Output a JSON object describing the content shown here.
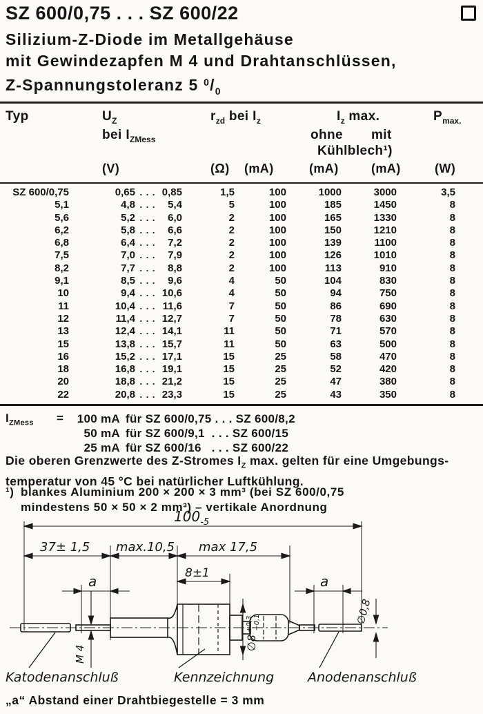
{
  "page": {
    "title": "SZ 600/0,75 . . . SZ 600/22",
    "subtitle_line1": "Silizium-Z-Diode im Metallgehäuse",
    "subtitle_line2": "mit Gewindezapfen M 4 und Drahtanschlüssen,",
    "subtitle_line3_pre": "Z-Spannungstoleranz 5 ",
    "percent_top": "0",
    "percent_slash": "/",
    "percent_bottom": "0"
  },
  "table": {
    "col_typ": "Typ",
    "col_uz_main": "U",
    "col_uz_sub": "Z",
    "col_uz2_main": "bei I",
    "col_uz2_sub": "ZMess",
    "col_rzd_main": "r",
    "col_rzd_sub": "zd",
    "col_rzd_mid": " bei I",
    "col_rzd_sub2": "z",
    "col_iz_main": "I",
    "col_iz_sub": "z",
    "col_iz_post": " max.",
    "col_ohne": "ohne",
    "col_mit": "mit",
    "col_kuehlblech": "Kühlblech¹)",
    "col_p_main": "P",
    "col_p_sub": "max.",
    "unit_v": "(V)",
    "unit_ohm": "(Ω)",
    "unit_ma_iz": "(mA)",
    "unit_ma_ohne": "(mA)",
    "unit_ma_mit": "(mA)",
    "unit_w": "(W)",
    "dots": ". . .",
    "rows": [
      {
        "typ": "SZ 600/0,75",
        "uz_min": "0,65",
        "uz_max": "0,85",
        "rzd": "1,5",
        "iz": "100",
        "ohne": "1000",
        "mit": "3000",
        "pmax": "3,5"
      },
      {
        "typ": "5,1",
        "uz_min": "4,8",
        "uz_max": "5,4",
        "rzd": "5",
        "iz": "100",
        "ohne": "185",
        "mit": "1450",
        "pmax": "8"
      },
      {
        "typ": "5,6",
        "uz_min": "5,2",
        "uz_max": "6,0",
        "rzd": "2",
        "iz": "100",
        "ohne": "165",
        "mit": "1330",
        "pmax": "8"
      },
      {
        "typ": "6,2",
        "uz_min": "5,8",
        "uz_max": "6,6",
        "rzd": "2",
        "iz": "100",
        "ohne": "150",
        "mit": "1210",
        "pmax": "8"
      },
      {
        "typ": "6,8",
        "uz_min": "6,4",
        "uz_max": "7,2",
        "rzd": "2",
        "iz": "100",
        "ohne": "139",
        "mit": "1100",
        "pmax": "8"
      },
      {
        "typ": "7,5",
        "uz_min": "7,0",
        "uz_max": "7,9",
        "rzd": "2",
        "iz": "100",
        "ohne": "126",
        "mit": "1010",
        "pmax": "8"
      },
      {
        "typ": "8,2",
        "uz_min": "7,7",
        "uz_max": "8,8",
        "rzd": "2",
        "iz": "100",
        "ohne": "113",
        "mit": "910",
        "pmax": "8"
      },
      {
        "typ": "9,1",
        "uz_min": "8,5",
        "uz_max": "9,6",
        "rzd": "4",
        "iz": "50",
        "ohne": "104",
        "mit": "830",
        "pmax": "8"
      },
      {
        "typ": "10",
        "uz_min": "9,4",
        "uz_max": "10,6",
        "rzd": "4",
        "iz": "50",
        "ohne": "94",
        "mit": "750",
        "pmax": "8"
      },
      {
        "typ": "11",
        "uz_min": "10,4",
        "uz_max": "11,6",
        "rzd": "7",
        "iz": "50",
        "ohne": "86",
        "mit": "690",
        "pmax": "8"
      },
      {
        "typ": "12",
        "uz_min": "11,4",
        "uz_max": "12,7",
        "rzd": "7",
        "iz": "50",
        "ohne": "78",
        "mit": "630",
        "pmax": "8"
      },
      {
        "typ": "13",
        "uz_min": "12,4",
        "uz_max": "14,1",
        "rzd": "11",
        "iz": "50",
        "ohne": "71",
        "mit": "570",
        "pmax": "8"
      },
      {
        "typ": "15",
        "uz_min": "13,8",
        "uz_max": "15,7",
        "rzd": "11",
        "iz": "50",
        "ohne": "63",
        "mit": "500",
        "pmax": "8"
      },
      {
        "typ": "16",
        "uz_min": "15,2",
        "uz_max": "17,1",
        "rzd": "15",
        "iz": "25",
        "ohne": "58",
        "mit": "470",
        "pmax": "8"
      },
      {
        "typ": "18",
        "uz_min": "16,8",
        "uz_max": "19,1",
        "rzd": "15",
        "iz": "25",
        "ohne": "52",
        "mit": "420",
        "pmax": "8"
      },
      {
        "typ": "20",
        "uz_min": "18,8",
        "uz_max": "21,2",
        "rzd": "15",
        "iz": "25",
        "ohne": "47",
        "mit": "380",
        "pmax": "8"
      },
      {
        "typ": "22",
        "uz_min": "20,8",
        "uz_max": "23,3",
        "rzd": "15",
        "iz": "25",
        "ohne": "43",
        "mit": "350",
        "pmax": "8"
      }
    ]
  },
  "notes": {
    "izmess_label_main": "I",
    "izmess_label_sub": "ZMess",
    "izmess_eq": "=",
    "izmess_lines": [
      {
        "amount": "100 mA",
        "rest": "für SZ 600/0,75 . . . SZ 600/8,2"
      },
      {
        "amount": "50 mA",
        "rest": "für SZ 600/9,1  . . . SZ 600/15"
      },
      {
        "amount": "25 mA",
        "rest": "für SZ 600/16   . . . SZ 600/22"
      }
    ],
    "ambient_pre": "Die oberen Grenzwerte des Z-Stromes I",
    "ambient_sub": "Z",
    "ambient_post": " max. gelten für eine Umgebungs-",
    "ambient_line2": "temperatur von 45 °C bei natürlicher Luftkühlung.",
    "footnote_marker": "¹)",
    "footnote_line1": "blankes Aluminium 200 × 200 × 3 mm³ (bei SZ 600/0,75",
    "footnote_line2": "mindestens 50 × 50 × 2 mm³)  –  vertikale Anordnung"
  },
  "drawing": {
    "dim_overall_main": "100",
    "dim_overall_sub": "-5",
    "dim_37": "37± 1,5",
    "dim_105": "max.10,5",
    "dim_175": "max 17,5",
    "dim_8": "8±1",
    "dim_a_left": "a",
    "dim_a_right": "a",
    "thread": "M 4",
    "dia_body_main": "∅8",
    "dia_body_tol_plus": "+0,3",
    "dia_body_tol_minus": "−0,1",
    "dia_wire": "∅0,8",
    "label_cathode": "Katodenanschluß",
    "label_marking": "Kennzeichnung",
    "label_anode": "Anodenanschluß",
    "note_a": "„a“ Abstand einer Drahtbiegestelle = 3 mm"
  }
}
